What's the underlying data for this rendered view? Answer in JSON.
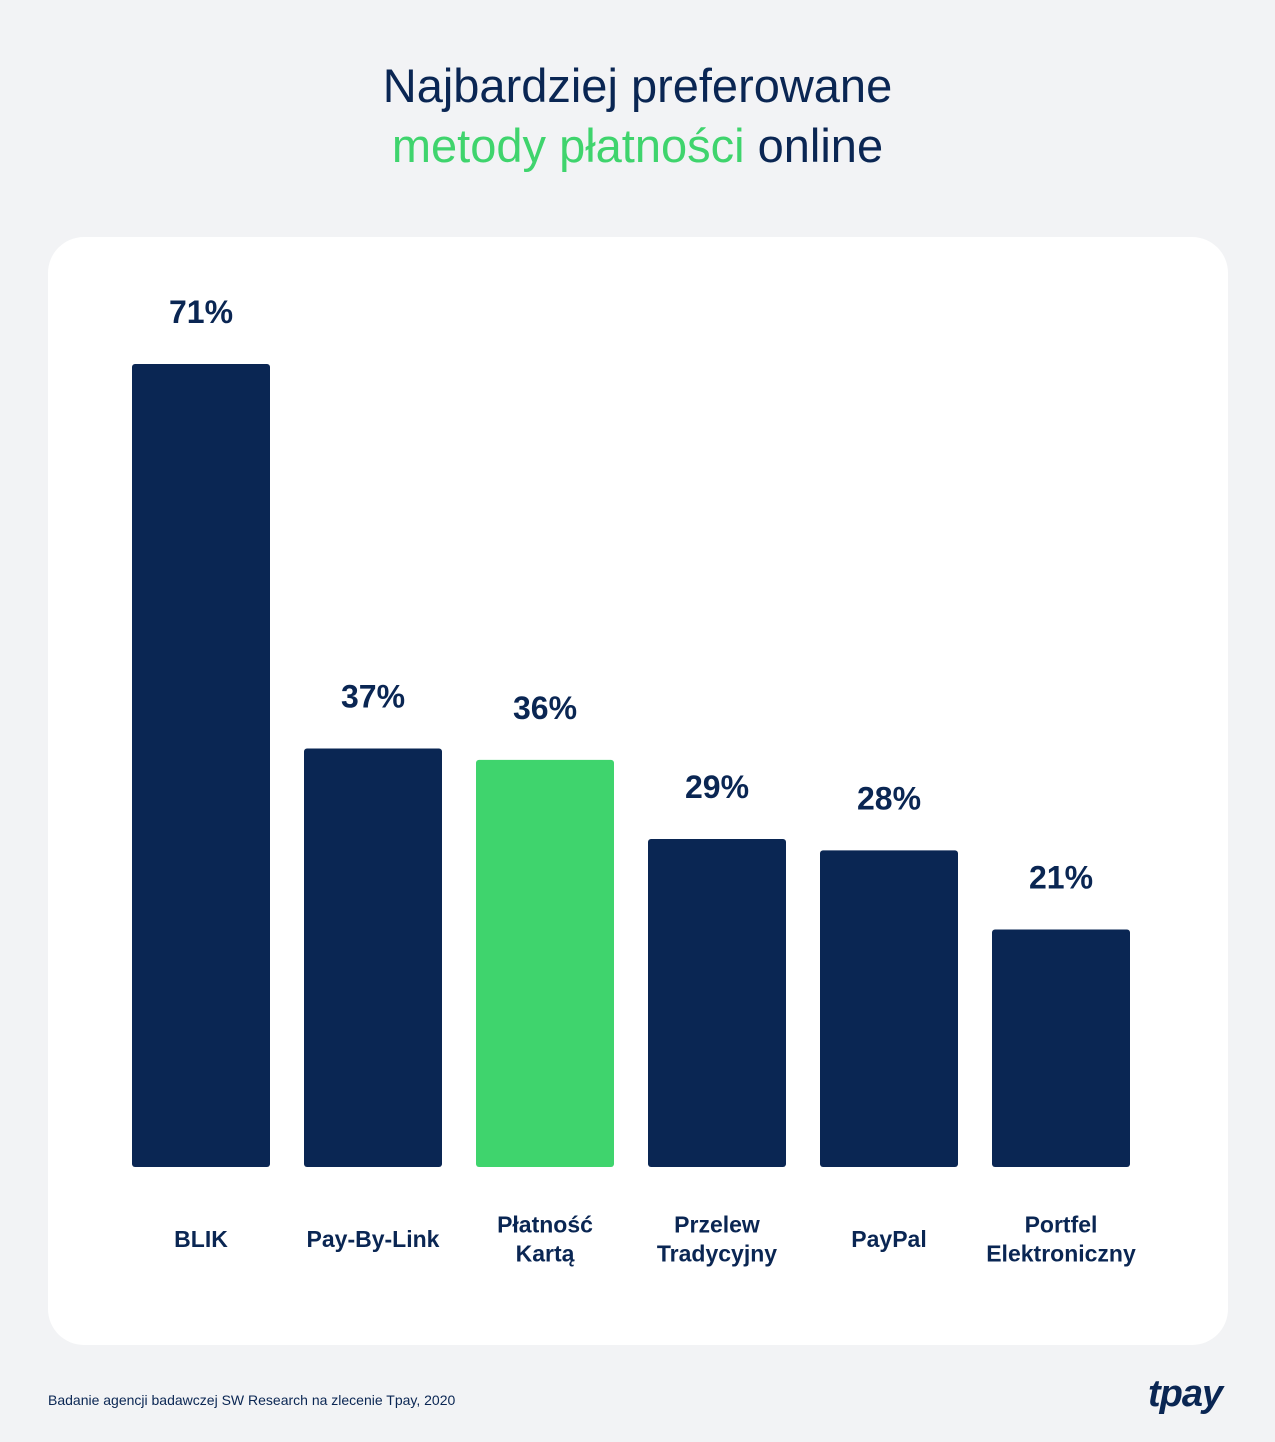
{
  "title": {
    "line1": "Najbardziej preferowane",
    "line2_accent": "metody płatności",
    "line2_rest": "online"
  },
  "colors": {
    "primary": "#0a2653",
    "accent": "#3fd46d",
    "background": "#f2f3f5",
    "card": "#ffffff"
  },
  "chart_data": {
    "type": "bar",
    "categories": [
      [
        "BLIK"
      ],
      [
        "Pay-By-Link"
      ],
      [
        "Płatność",
        "Kartą"
      ],
      [
        "Przelew",
        "Tradycyjny"
      ],
      [
        "PayPal"
      ],
      [
        "Portfel",
        "Elektroniczny"
      ]
    ],
    "values": [
      71,
      37,
      36,
      29,
      28,
      21
    ],
    "value_labels": [
      "71%",
      "37%",
      "36%",
      "29%",
      "28%",
      "21%"
    ],
    "highlight_index": 2,
    "unit": "%",
    "grid": false,
    "legend": "none"
  },
  "footnote": "Badanie agencji badawczej SW Research na zlecenie Tpay, 2020",
  "logo_text": "tpay"
}
